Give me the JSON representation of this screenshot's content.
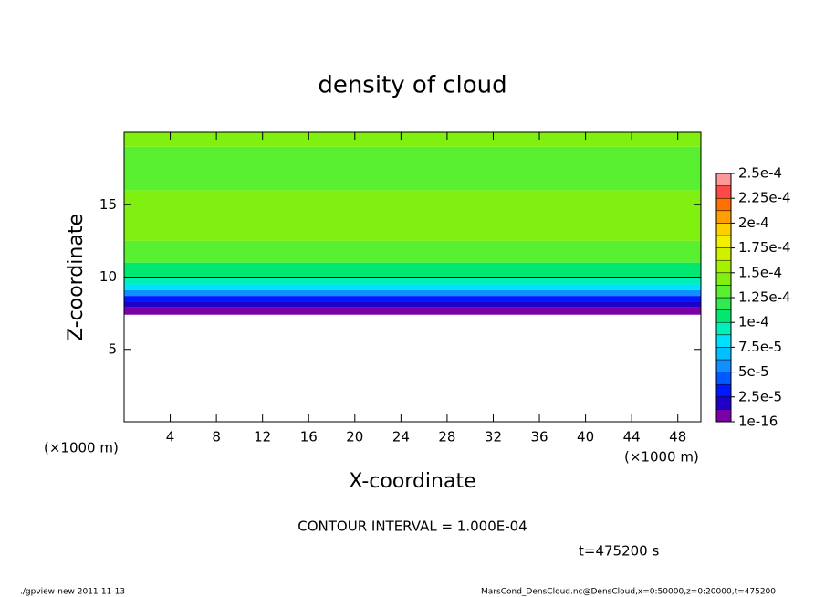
{
  "chart_data": {
    "type": "heatmap",
    "title": "density of cloud",
    "x_label": "X-coordinate",
    "y_label": "Z-coordinate",
    "x_unit_left": "(×1000 m)",
    "x_unit_right": "(×1000 m)",
    "contour_text": "CONTOUR INTERVAL = 1.000E-04",
    "time_text": "t=475200 s",
    "footer_left": "./gpview-new   2011-11-13",
    "footer_right": "MarsCond_DensCloud.nc@DensCloud,x=0:50000,z=0:20000,t=475200",
    "xlim": [
      0,
      50
    ],
    "xticks": [
      4,
      8,
      12,
      16,
      20,
      24,
      28,
      32,
      36,
      40,
      44,
      48
    ],
    "ylim": [
      0,
      20
    ],
    "yticks": [
      5,
      10,
      15
    ],
    "z_edges": [
      7.4,
      7.9,
      8.3,
      8.7,
      9.1,
      9.5,
      10.0,
      11,
      12.5,
      16,
      19,
      20
    ],
    "values": [
      5e-06,
      2e-05,
      3e-05,
      5.5e-05,
      8e-05,
      9e-05,
      0.00011,
      0.00013,
      0.000145,
      0.000135,
      0.00014
    ],
    "levels": [
      1e-16,
      1.25e-05,
      2.5e-05,
      3.75e-05,
      5e-05,
      6.25e-05,
      7.5e-05,
      8.75e-05,
      0.0001,
      0.0001125,
      0.000125,
      0.0001375,
      0.00015,
      0.0001625,
      0.000175,
      0.0001875,
      0.0002,
      0.0002125,
      0.000225,
      0.0002375,
      0.00025
    ],
    "colors": [
      "#7a00a8",
      "#2000c8",
      "#0018ff",
      "#0058ff",
      "#1090ff",
      "#00c0ff",
      "#00e0ff",
      "#00f0b8",
      "#00e870",
      "#30ea50",
      "#58f030",
      "#80f010",
      "#a8f000",
      "#d0f000",
      "#f0f000",
      "#ffd000",
      "#ffa000",
      "#ff7000",
      "#ff4848",
      "#ff9898"
    ],
    "colorbar_ticks": [
      {
        "value": 1e-16,
        "label": "1e-16"
      },
      {
        "value": 2.5e-05,
        "label": "2.5e-5"
      },
      {
        "value": 5e-05,
        "label": "5e-5"
      },
      {
        "value": 7.5e-05,
        "label": "7.5e-5"
      },
      {
        "value": 0.0001,
        "label": "1e-4"
      },
      {
        "value": 0.000125,
        "label": "1.25e-4"
      },
      {
        "value": 0.00015,
        "label": "1.5e-4"
      },
      {
        "value": 0.000175,
        "label": "1.75e-4"
      },
      {
        "value": 0.0002,
        "label": "2e-4"
      },
      {
        "value": 0.000225,
        "label": "2.25e-4"
      },
      {
        "value": 0.00025,
        "label": "2.5e-4"
      }
    ]
  }
}
